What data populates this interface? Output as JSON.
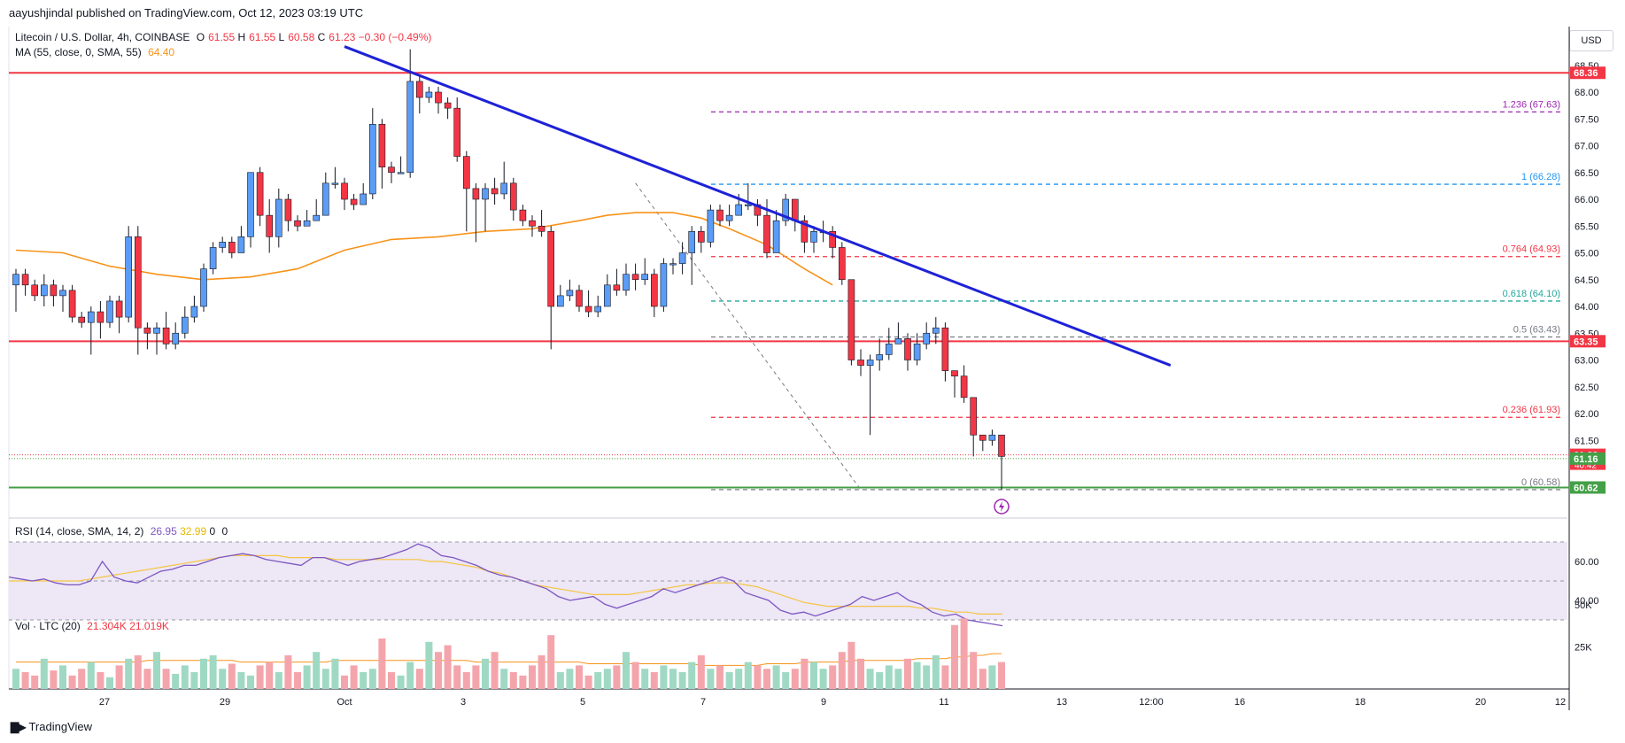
{
  "header": {
    "publisher": "aayushjindal published on TradingView.com, Oct 12, 2023 03:19 UTC"
  },
  "legend": {
    "symbol": "Litecoin / U.S. Dollar, 4h, COINBASE",
    "ohlc": [
      {
        "label": "O",
        "value": "61.55"
      },
      {
        "label": "H",
        "value": "61.55"
      },
      {
        "label": "L",
        "value": "60.58"
      },
      {
        "label": "C",
        "value": "61.23"
      }
    ],
    "change": "−0.30 (−0.49%)",
    "ma_label": "MA (55, close, 0, SMA, 55)",
    "ma_value": "64.40",
    "rsi_label": "RSI (14, close, SMA, 14, 2)",
    "rsi_value": "26.95",
    "rsi_ma_value": "32.99",
    "rsi_zero1": "0",
    "rsi_zero2": "0",
    "vol_label": "Vol · LTC (20)",
    "vol_value": "21.304K",
    "vol_ma_value": "21.019K"
  },
  "currency_button": "USD",
  "brand": "TradingView",
  "colors": {
    "up": "#5b9cf6",
    "down": "#f23645",
    "ma": "#f7931a",
    "trendline": "#1e22d6",
    "support_line": "#43a047",
    "rsi": "#7e57c2",
    "rsi_band": "#ede7f6"
  },
  "chart_data": {
    "type": "candlestick",
    "price_axis": {
      "ticks": [
        "68.50",
        "68.00",
        "67.50",
        "67.00",
        "66.50",
        "66.00",
        "65.50",
        "65.00",
        "64.50",
        "64.00",
        "63.50",
        "63.00",
        "62.50",
        "62.00",
        "61.50"
      ],
      "badges": [
        {
          "text": "68.36",
          "value": 68.36,
          "color": "#f23645"
        },
        {
          "text": "63.35",
          "value": 63.35,
          "color": "#f23645"
        },
        {
          "text": "61.23",
          "value": 61.23,
          "color": "#f23645",
          "sub": "40:42"
        },
        {
          "text": "61.16",
          "value": 61.16,
          "color": "#43a047"
        },
        {
          "text": "60.62",
          "value": 60.62,
          "color": "#43a047"
        }
      ]
    },
    "time_axis": [
      "27",
      "29",
      "Oct",
      "3",
      "5",
      "7",
      "9",
      "11",
      "13",
      "12:00",
      "16",
      "18",
      "20",
      "12"
    ],
    "horizontal_lines": [
      {
        "value": 68.36,
        "color": "#f23645"
      },
      {
        "value": 63.35,
        "color": "#f23645"
      },
      {
        "value": 60.62,
        "color": "#43a047"
      }
    ],
    "fibonacci": [
      {
        "label": "1.236 (67.63)",
        "value": 67.63,
        "color": "#9c27b0"
      },
      {
        "label": "1 (66.28)",
        "value": 66.28,
        "color": "#2196f3"
      },
      {
        "label": "0.764 (64.93)",
        "value": 64.93,
        "color": "#f23645"
      },
      {
        "label": "0.618 (64.10)",
        "value": 64.1,
        "color": "#26a69a"
      },
      {
        "label": "0.5 (63.43)",
        "value": 63.43,
        "color": "#787b86"
      },
      {
        "label": "0.236 (61.93)",
        "value": 61.93,
        "color": "#f23645"
      },
      {
        "label": "0 (60.58)",
        "value": 60.58,
        "color": "#787b86"
      }
    ],
    "trendline": {
      "from": [
        35,
        68.85
      ],
      "to": [
        123,
        62.9
      ]
    },
    "fib_dash": {
      "from": [
        66,
        66.3
      ],
      "to": [
        90,
        60.58
      ]
    },
    "ma": [
      [
        0,
        65.05
      ],
      [
        5,
        65.0
      ],
      [
        10,
        64.75
      ],
      [
        15,
        64.6
      ],
      [
        20,
        64.5
      ],
      [
        25,
        64.55
      ],
      [
        30,
        64.7
      ],
      [
        35,
        65.05
      ],
      [
        40,
        65.25
      ],
      [
        45,
        65.3
      ],
      [
        50,
        65.4
      ],
      [
        55,
        65.45
      ],
      [
        60,
        65.6
      ],
      [
        63,
        65.7
      ],
      [
        66,
        65.75
      ],
      [
        70,
        65.75
      ],
      [
        73,
        65.65
      ],
      [
        76,
        65.45
      ],
      [
        80,
        65.15
      ],
      [
        84,
        64.7
      ],
      [
        87,
        64.4
      ]
    ],
    "candles": [
      [
        64.4,
        64.6,
        63.9,
        64.7
      ],
      [
        64.6,
        64.4,
        64.2,
        64.7
      ],
      [
        64.4,
        64.2,
        64.1,
        64.5
      ],
      [
        64.2,
        64.4,
        64.0,
        64.6
      ],
      [
        64.4,
        64.2,
        64.0,
        64.5
      ],
      [
        64.2,
        64.3,
        63.9,
        64.4
      ],
      [
        64.3,
        63.8,
        63.7,
        64.4
      ],
      [
        63.8,
        63.7,
        63.6,
        63.9
      ],
      [
        63.7,
        63.9,
        63.1,
        64.0
      ],
      [
        63.9,
        63.7,
        63.4,
        64.1
      ],
      [
        63.7,
        64.1,
        63.6,
        64.2
      ],
      [
        64.1,
        63.8,
        63.5,
        64.2
      ],
      [
        63.8,
        65.3,
        63.7,
        65.5
      ],
      [
        65.3,
        63.6,
        63.1,
        65.5
      ],
      [
        63.6,
        63.5,
        63.2,
        63.7
      ],
      [
        63.5,
        63.6,
        63.1,
        63.7
      ],
      [
        63.6,
        63.3,
        63.2,
        63.9
      ],
      [
        63.3,
        63.5,
        63.2,
        63.7
      ],
      [
        63.5,
        63.8,
        63.4,
        64.0
      ],
      [
        63.8,
        64.0,
        63.7,
        64.2
      ],
      [
        64.0,
        64.7,
        63.9,
        64.8
      ],
      [
        64.7,
        65.1,
        64.6,
        65.2
      ],
      [
        65.1,
        65.2,
        65.0,
        65.3
      ],
      [
        65.2,
        65.0,
        64.9,
        65.3
      ],
      [
        65.0,
        65.3,
        65.0,
        65.5
      ],
      [
        65.3,
        66.5,
        65.1,
        66.5
      ],
      [
        66.5,
        65.7,
        65.5,
        66.6
      ],
      [
        65.7,
        65.3,
        65.0,
        66.0
      ],
      [
        65.3,
        66.0,
        65.1,
        66.2
      ],
      [
        66.0,
        65.6,
        65.4,
        66.1
      ],
      [
        65.6,
        65.5,
        65.4,
        65.7
      ],
      [
        65.5,
        65.6,
        65.5,
        65.8
      ],
      [
        65.6,
        65.7,
        65.6,
        66.0
      ],
      [
        65.7,
        66.3,
        65.7,
        66.5
      ],
      [
        66.3,
        66.3,
        66.2,
        66.6
      ],
      [
        66.3,
        66.0,
        65.8,
        66.4
      ],
      [
        66.0,
        65.9,
        65.8,
        66.1
      ],
      [
        65.9,
        66.1,
        65.9,
        66.3
      ],
      [
        66.1,
        67.4,
        66.0,
        67.7
      ],
      [
        67.4,
        66.6,
        66.2,
        67.5
      ],
      [
        66.6,
        66.5,
        66.3,
        66.7
      ],
      [
        66.5,
        66.5,
        66.5,
        66.8
      ],
      [
        66.5,
        68.2,
        66.4,
        68.8
      ],
      [
        68.2,
        67.9,
        67.6,
        68.3
      ],
      [
        67.9,
        68.0,
        67.8,
        68.1
      ],
      [
        68.0,
        67.8,
        67.6,
        68.1
      ],
      [
        67.8,
        67.7,
        67.5,
        67.9
      ],
      [
        67.7,
        66.8,
        66.7,
        67.9
      ],
      [
        66.8,
        66.2,
        65.4,
        66.9
      ],
      [
        66.2,
        66.0,
        65.2,
        66.3
      ],
      [
        66.0,
        66.2,
        65.4,
        66.3
      ],
      [
        66.2,
        66.1,
        65.9,
        66.4
      ],
      [
        66.1,
        66.3,
        66.0,
        66.7
      ],
      [
        66.3,
        65.8,
        65.6,
        66.4
      ],
      [
        65.8,
        65.6,
        65.5,
        65.9
      ],
      [
        65.6,
        65.5,
        65.3,
        65.7
      ],
      [
        65.5,
        65.4,
        65.3,
        65.8
      ],
      [
        65.4,
        64.0,
        63.2,
        65.5
      ],
      [
        64.0,
        64.2,
        64.0,
        64.4
      ],
      [
        64.2,
        64.3,
        64.1,
        64.5
      ],
      [
        64.3,
        64.0,
        63.9,
        64.4
      ],
      [
        64.0,
        63.9,
        63.8,
        64.3
      ],
      [
        63.9,
        64.0,
        63.8,
        64.2
      ],
      [
        64.0,
        64.4,
        64.0,
        64.6
      ],
      [
        64.4,
        64.3,
        64.2,
        64.7
      ],
      [
        64.3,
        64.6,
        64.2,
        64.8
      ],
      [
        64.6,
        64.5,
        64.3,
        64.8
      ],
      [
        64.5,
        64.6,
        64.4,
        64.9
      ],
      [
        64.6,
        64.0,
        63.8,
        64.7
      ],
      [
        64.0,
        64.8,
        63.9,
        64.9
      ],
      [
        64.8,
        64.8,
        64.6,
        64.9
      ],
      [
        64.8,
        65.0,
        64.6,
        65.2
      ],
      [
        65.0,
        65.4,
        64.4,
        65.5
      ],
      [
        65.4,
        65.2,
        65.0,
        65.5
      ],
      [
        65.2,
        65.8,
        65.1,
        65.9
      ],
      [
        65.8,
        65.6,
        65.5,
        65.9
      ],
      [
        65.6,
        65.7,
        65.5,
        65.9
      ],
      [
        65.7,
        65.9,
        65.7,
        66.1
      ],
      [
        65.9,
        65.9,
        65.8,
        66.3
      ],
      [
        65.9,
        65.7,
        65.5,
        66.0
      ],
      [
        65.7,
        65.0,
        64.9,
        66.0
      ],
      [
        65.0,
        65.6,
        65.0,
        65.8
      ],
      [
        65.6,
        66.0,
        65.5,
        66.1
      ],
      [
        66.0,
        65.6,
        65.4,
        66.0
      ],
      [
        65.6,
        65.2,
        65.0,
        65.7
      ],
      [
        65.2,
        65.4,
        65.0,
        65.5
      ],
      [
        65.4,
        65.4,
        65.2,
        65.6
      ],
      [
        65.4,
        65.1,
        64.9,
        65.5
      ],
      [
        65.1,
        64.5,
        64.4,
        65.2
      ],
      [
        64.5,
        63.0,
        62.9,
        64.5
      ],
      [
        63.0,
        62.9,
        62.7,
        63.2
      ],
      [
        62.9,
        63.0,
        61.6,
        63.1
      ],
      [
        63.0,
        63.1,
        62.8,
        63.4
      ],
      [
        63.1,
        63.3,
        63.0,
        63.6
      ],
      [
        63.3,
        63.4,
        63.3,
        63.7
      ],
      [
        63.4,
        63.0,
        62.8,
        63.5
      ],
      [
        63.0,
        63.3,
        62.9,
        63.5
      ],
      [
        63.3,
        63.5,
        63.2,
        63.7
      ],
      [
        63.5,
        63.6,
        63.3,
        63.8
      ],
      [
        63.6,
        62.8,
        62.6,
        63.7
      ],
      [
        62.8,
        62.7,
        62.3,
        62.8
      ],
      [
        62.7,
        62.3,
        62.2,
        62.9
      ],
      [
        62.3,
        61.6,
        61.2,
        62.3
      ],
      [
        61.6,
        61.5,
        61.3,
        61.6
      ],
      [
        61.5,
        61.6,
        61.4,
        61.7
      ],
      [
        61.6,
        61.2,
        60.58,
        61.6
      ]
    ],
    "rsi": {
      "ticks": [
        "60.00",
        "40.00"
      ],
      "levels": [
        70,
        50,
        30
      ],
      "rsi_line": [
        52,
        51,
        50,
        51,
        49,
        48,
        48,
        50,
        60,
        52,
        50,
        49,
        52,
        55,
        56,
        58,
        58,
        60,
        62,
        63,
        64,
        63,
        61,
        60,
        59,
        58,
        62,
        62,
        60,
        58,
        60,
        61,
        62,
        64,
        66,
        69,
        67,
        63,
        62,
        60,
        58,
        55,
        53,
        52,
        50,
        48,
        46,
        42,
        40,
        41,
        42,
        38,
        36,
        38,
        40,
        42,
        46,
        44,
        46,
        48,
        50,
        52,
        50,
        44,
        42,
        40,
        35,
        33,
        34,
        32,
        34,
        36,
        38,
        42,
        40,
        42,
        44,
        40,
        38,
        34,
        32,
        33,
        30,
        29,
        28,
        27
      ],
      "rsi_ma": [
        50,
        50,
        50,
        50,
        50,
        50,
        50,
        51,
        52,
        53,
        54,
        55,
        56,
        57,
        58,
        59,
        60,
        61,
        62,
        63,
        63,
        63,
        63,
        63,
        62,
        62,
        62,
        62,
        61,
        61,
        61,
        61,
        61,
        61,
        61,
        61,
        60,
        60,
        59,
        58,
        57,
        55,
        54,
        52,
        50,
        48,
        47,
        46,
        45,
        44,
        43,
        43,
        43,
        43,
        44,
        45,
        46,
        47,
        48,
        48,
        49,
        49,
        49,
        48,
        47,
        45,
        43,
        41,
        39,
        38,
        37,
        37,
        37,
        37,
        37,
        37,
        37,
        37,
        36,
        36,
        35,
        34,
        34,
        33,
        33,
        33
      ]
    },
    "volume": {
      "ticks": [
        "50K",
        "25K"
      ],
      "bars": [
        12,
        10,
        8,
        18,
        11,
        14,
        8,
        12,
        16,
        10,
        7,
        14,
        18,
        20,
        12,
        22,
        12,
        9,
        14,
        10,
        18,
        20,
        12,
        15,
        10,
        8,
        14,
        16,
        10,
        20,
        10,
        14,
        22,
        12,
        18,
        8,
        14,
        10,
        12,
        30,
        10,
        8,
        16,
        12,
        28,
        22,
        26,
        14,
        10,
        14,
        18,
        22,
        12,
        10,
        8,
        14,
        20,
        32,
        10,
        12,
        14,
        8,
        10,
        12,
        14,
        22,
        16,
        12,
        10,
        14,
        12,
        10,
        16,
        20,
        12,
        14,
        10,
        12,
        16,
        14,
        12,
        14,
        10,
        12,
        18,
        16,
        12,
        14,
        22,
        28,
        18,
        12,
        10,
        14,
        12,
        18,
        16,
        14,
        20,
        14,
        38,
        42,
        22,
        12,
        14,
        16
      ],
      "vol_ma": [
        16,
        16,
        16,
        16,
        16,
        16,
        16,
        16,
        16,
        16,
        16,
        16,
        16,
        16,
        17,
        17,
        17,
        17,
        17,
        17,
        17,
        17,
        17,
        17,
        16,
        16,
        16,
        16,
        16,
        16,
        16,
        16,
        16,
        16,
        17,
        17,
        17,
        17,
        17,
        17,
        17,
        17,
        17,
        17,
        17,
        17,
        17,
        17,
        17,
        16,
        16,
        16,
        16,
        16,
        16,
        16,
        16,
        16,
        16,
        16,
        16,
        15,
        15,
        15,
        15,
        15,
        15,
        15,
        15,
        15,
        15,
        15,
        15,
        14,
        14,
        14,
        14,
        14,
        14,
        14,
        15,
        15,
        15,
        15,
        16,
        16,
        16,
        16,
        16,
        17,
        17,
        17,
        17,
        17,
        17,
        17,
        18,
        18,
        18,
        18,
        19,
        19,
        20,
        20,
        21,
        21
      ]
    }
  }
}
